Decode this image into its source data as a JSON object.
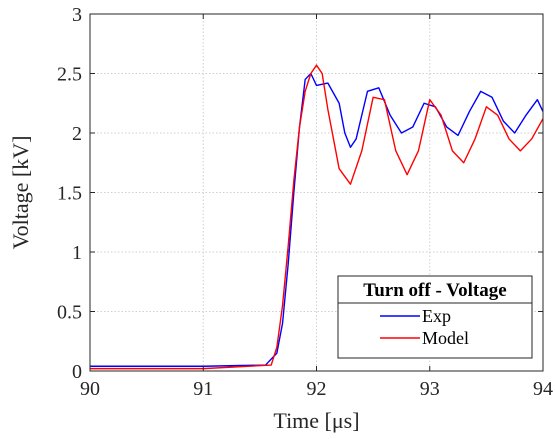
{
  "chart_data": {
    "type": "line",
    "title": "",
    "xlabel": "Time [μs]",
    "ylabel": "Voltage [kV]",
    "xlim": [
      90,
      94
    ],
    "ylim": [
      0,
      3
    ],
    "x_ticks": [
      90,
      91,
      92,
      93,
      94
    ],
    "y_ticks": [
      0,
      0.5,
      1,
      1.5,
      2,
      2.5,
      3
    ],
    "grid": true,
    "legend": {
      "title": "Turn off - Voltage",
      "placement": "bottom-right"
    },
    "series": [
      {
        "name": "Exp",
        "color": "#0000ff",
        "x": [
          90.0,
          91.0,
          91.55,
          91.65,
          91.7,
          91.75,
          91.8,
          91.85,
          91.9,
          91.95,
          92.0,
          92.1,
          92.2,
          92.25,
          92.3,
          92.35,
          92.45,
          92.55,
          92.65,
          92.75,
          92.85,
          92.95,
          93.05,
          93.15,
          93.25,
          93.35,
          93.45,
          93.55,
          93.65,
          93.75,
          93.85,
          93.95,
          94.0
        ],
        "y": [
          0.04,
          0.04,
          0.05,
          0.15,
          0.4,
          0.9,
          1.5,
          2.05,
          2.45,
          2.5,
          2.4,
          2.42,
          2.25,
          2.0,
          1.88,
          1.95,
          2.35,
          2.38,
          2.15,
          2.0,
          2.05,
          2.25,
          2.22,
          2.05,
          1.98,
          2.18,
          2.35,
          2.3,
          2.1,
          2.0,
          2.15,
          2.28,
          2.18
        ]
      },
      {
        "name": "Model",
        "color": "#ff0000",
        "x": [
          90.0,
          91.0,
          91.6,
          91.65,
          91.7,
          91.75,
          91.8,
          91.85,
          91.9,
          91.95,
          92.0,
          92.05,
          92.1,
          92.2,
          92.3,
          92.4,
          92.5,
          92.6,
          92.7,
          92.8,
          92.9,
          93.0,
          93.1,
          93.2,
          93.3,
          93.4,
          93.5,
          93.6,
          93.7,
          93.8,
          93.9,
          94.0
        ],
        "y": [
          0.02,
          0.02,
          0.05,
          0.2,
          0.55,
          1.05,
          1.6,
          2.05,
          2.35,
          2.5,
          2.57,
          2.5,
          2.2,
          1.7,
          1.57,
          1.85,
          2.3,
          2.28,
          1.85,
          1.65,
          1.85,
          2.28,
          2.15,
          1.85,
          1.75,
          1.95,
          2.22,
          2.15,
          1.95,
          1.85,
          1.95,
          2.12
        ]
      }
    ]
  }
}
